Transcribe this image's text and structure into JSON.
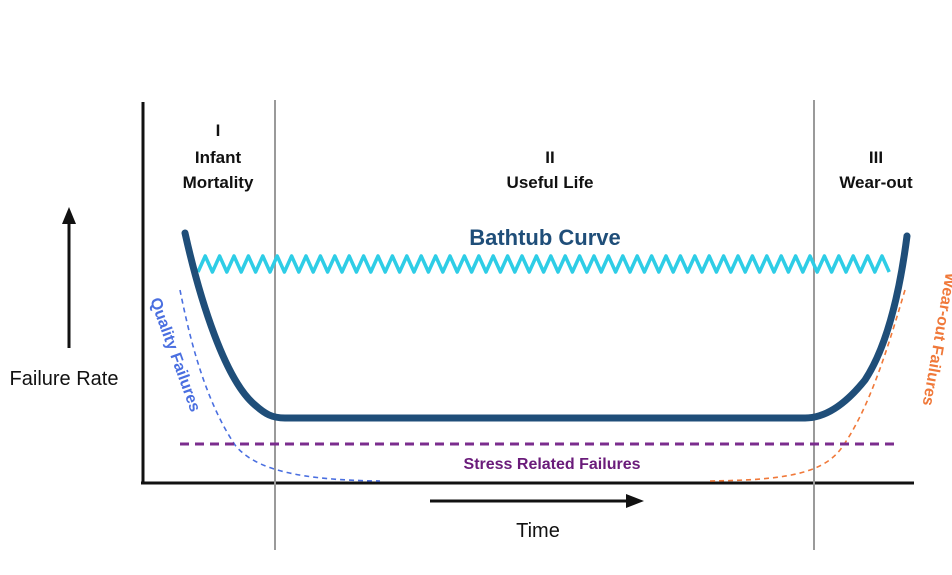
{
  "phases": [
    {
      "numeral": "I",
      "lines": [
        "Infant",
        "Mortality"
      ]
    },
    {
      "numeral": "II",
      "lines": [
        "Useful Life"
      ]
    },
    {
      "numeral": "III",
      "lines": [
        "Wear-out"
      ]
    }
  ],
  "curve_title": "Bathtub Curve",
  "y_axis_label": "Failure Rate",
  "x_axis_label": "Time",
  "stress_label": "Stress Related Failures",
  "quality_label": "Quality Failures",
  "wearout_label": "Wear-out Failures",
  "colors": {
    "bathtub": "#1f4e79",
    "wave": "#2ecde6",
    "stress": "#7b2d8e",
    "quality": "#4a6fe0",
    "wearout": "#f0793a",
    "divider": "#9a9a9a",
    "axis": "#111111"
  }
}
